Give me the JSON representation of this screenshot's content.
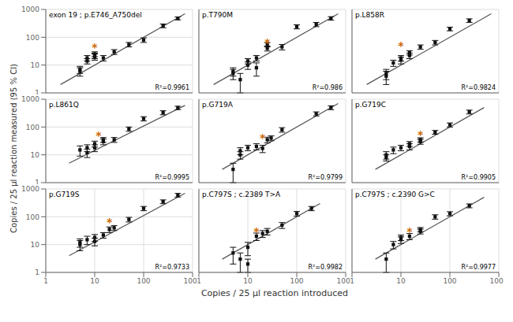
{
  "chart_data": [
    {
      "type": "scatter",
      "title": "exon 19 ; p.E746_A750del",
      "log": true,
      "grid": true,
      "xlim": [
        1,
        1000
      ],
      "ylim": [
        1,
        1000
      ],
      "xticks": [
        1,
        10,
        100,
        1000
      ],
      "yticks": [
        1,
        10,
        100,
        1000
      ],
      "tick_labels": "y",
      "series": [
        {
          "type": "line",
          "color": "#555555",
          "x": [
            2,
            700
          ],
          "values": [
            2,
            700
          ]
        },
        {
          "type": "scatter",
          "marker": "square",
          "color": "#111111",
          "x": [
            5,
            5,
            7,
            7,
            10,
            10,
            10,
            15,
            25,
            50,
            100,
            250,
            500
          ],
          "values": [
            6,
            7,
            14,
            18,
            20,
            22,
            25,
            18,
            30,
            55,
            80,
            260,
            480
          ],
          "error_low": [
            2,
            2,
            3,
            4,
            5,
            5,
            5,
            4,
            6,
            10,
            15,
            40,
            60
          ],
          "error_high": [
            2,
            2,
            3,
            4,
            5,
            5,
            5,
            4,
            6,
            10,
            15,
            40,
            60
          ]
        }
      ],
      "annotations": [
        {
          "text": "*",
          "x": 10,
          "y": 45,
          "color": "#cc6600"
        },
        {
          "text": "R²=0.9961"
        }
      ]
    },
    {
      "type": "scatter",
      "title": "p.T790M",
      "log": true,
      "grid": true,
      "xlim": [
        1,
        1000
      ],
      "ylim": [
        1,
        1000
      ],
      "xticks": [
        1,
        10,
        100,
        1000
      ],
      "yticks": [
        1,
        10,
        100,
        1000
      ],
      "tick_labels": false,
      "series": [
        {
          "type": "line",
          "color": "#555555",
          "x": [
            2,
            700
          ],
          "values": [
            2,
            700
          ]
        },
        {
          "type": "scatter",
          "marker": "square",
          "color": "#111111",
          "x": [
            5,
            5,
            7,
            10,
            10,
            15,
            15,
            25,
            25,
            50,
            100,
            250,
            500
          ],
          "values": [
            5,
            6,
            3,
            10,
            14,
            18,
            8,
            40,
            55,
            45,
            240,
            290,
            480
          ],
          "error_low": [
            2,
            2,
            2,
            3,
            3,
            4,
            4,
            8,
            10,
            10,
            40,
            50,
            70
          ],
          "error_high": [
            2,
            2,
            2,
            3,
            3,
            4,
            4,
            8,
            10,
            10,
            40,
            50,
            70
          ]
        }
      ],
      "annotations": [
        {
          "text": "*",
          "x": 25,
          "y": 65,
          "color": "#cc6600"
        },
        {
          "text": "R²=0.986"
        }
      ]
    },
    {
      "type": "scatter",
      "title": "p.L858R",
      "log": true,
      "grid": true,
      "xlim": [
        1,
        1000
      ],
      "ylim": [
        1,
        1000
      ],
      "xticks": [
        1,
        10,
        100,
        1000
      ],
      "yticks": [
        1,
        10,
        100,
        1000
      ],
      "tick_labels": false,
      "series": [
        {
          "type": "line",
          "color": "#555555",
          "x": [
            2,
            700
          ],
          "values": [
            2,
            700
          ]
        },
        {
          "type": "scatter",
          "marker": "square",
          "color": "#111111",
          "x": [
            5,
            5,
            7,
            10,
            10,
            15,
            15,
            25,
            50,
            100,
            250
          ],
          "values": [
            4,
            5,
            12,
            15,
            18,
            22,
            28,
            45,
            65,
            200,
            400
          ],
          "error_low": [
            2,
            2,
            3,
            4,
            4,
            5,
            5,
            8,
            12,
            30,
            60
          ],
          "error_high": [
            2,
            2,
            3,
            4,
            4,
            5,
            5,
            8,
            12,
            30,
            60
          ]
        }
      ],
      "annotations": [
        {
          "text": "*",
          "x": 10,
          "y": 50,
          "color": "#cc6600"
        },
        {
          "text": "R²=0.9824"
        }
      ]
    },
    {
      "type": "scatter",
      "title": "p.L861Q",
      "log": true,
      "grid": true,
      "xlim": [
        1,
        1000
      ],
      "ylim": [
        1,
        1000
      ],
      "xticks": [
        1,
        10,
        100,
        1000
      ],
      "yticks": [
        1,
        10,
        100,
        1000
      ],
      "tick_labels": "y",
      "series": [
        {
          "type": "line",
          "color": "#555555",
          "x": [
            3,
            700
          ],
          "values": [
            5,
            600
          ]
        },
        {
          "type": "scatter",
          "marker": "square",
          "color": "#111111",
          "x": [
            5,
            7,
            7,
            10,
            10,
            15,
            15,
            25,
            50,
            100,
            250,
            500
          ],
          "values": [
            15,
            12,
            18,
            18,
            25,
            30,
            35,
            35,
            85,
            200,
            330,
            490
          ],
          "error_low": [
            6,
            4,
            5,
            5,
            6,
            7,
            7,
            7,
            15,
            35,
            55,
            70
          ],
          "error_high": [
            6,
            4,
            5,
            5,
            6,
            7,
            7,
            7,
            15,
            35,
            55,
            70
          ]
        }
      ],
      "annotations": [
        {
          "text": "*",
          "x": 12,
          "y": 50,
          "color": "#cc6600"
        },
        {
          "text": "R²=0.9995"
        }
      ]
    },
    {
      "type": "scatter",
      "title": "p.G719A",
      "log": true,
      "grid": true,
      "xlim": [
        1,
        1000
      ],
      "ylim": [
        1,
        1000
      ],
      "xticks": [
        1,
        10,
        100,
        1000
      ],
      "yticks": [
        1,
        10,
        100,
        1000
      ],
      "tick_labels": false,
      "series": [
        {
          "type": "line",
          "color": "#555555",
          "x": [
            3,
            700
          ],
          "values": [
            3,
            700
          ]
        },
        {
          "type": "scatter",
          "marker": "square",
          "color": "#111111",
          "x": [
            5,
            7,
            7,
            10,
            15,
            20,
            25,
            30,
            50,
            250,
            500
          ],
          "values": [
            3,
            10,
            14,
            18,
            20,
            17,
            35,
            40,
            80,
            300,
            500
          ],
          "error_low": [
            2,
            3,
            4,
            4,
            5,
            5,
            8,
            8,
            15,
            50,
            80
          ],
          "error_high": [
            2,
            3,
            4,
            4,
            5,
            5,
            8,
            8,
            15,
            50,
            80
          ]
        }
      ],
      "annotations": [
        {
          "text": "*",
          "x": 20,
          "y": 40,
          "color": "#cc6600"
        },
        {
          "text": "R²=0.9799"
        }
      ]
    },
    {
      "type": "scatter",
      "title": "p.G719C",
      "log": true,
      "grid": true,
      "xlim": [
        1,
        1000
      ],
      "ylim": [
        1,
        1000
      ],
      "xticks": [
        1,
        10,
        100,
        1000
      ],
      "yticks": [
        1,
        10,
        100,
        1000
      ],
      "tick_labels": false,
      "series": [
        {
          "type": "line",
          "color": "#555555",
          "x": [
            3,
            500
          ],
          "values": [
            3,
            500
          ]
        },
        {
          "type": "scatter",
          "marker": "square",
          "color": "#111111",
          "x": [
            5,
            5,
            7,
            10,
            15,
            15,
            25,
            25,
            50,
            100,
            250
          ],
          "values": [
            8,
            10,
            15,
            18,
            20,
            25,
            30,
            35,
            65,
            120,
            350
          ],
          "error_low": [
            2,
            3,
            4,
            4,
            5,
            5,
            6,
            6,
            10,
            20,
            55
          ],
          "error_high": [
            2,
            3,
            4,
            4,
            5,
            5,
            6,
            6,
            10,
            20,
            55
          ]
        }
      ],
      "annotations": [
        {
          "text": "*",
          "x": 25,
          "y": 55,
          "color": "#cc6600"
        },
        {
          "text": "R²=0.9905"
        }
      ]
    },
    {
      "type": "scatter",
      "title": "p.G719S",
      "log": true,
      "grid": true,
      "xlim": [
        1,
        1000
      ],
      "ylim": [
        1,
        1000
      ],
      "xticks": [
        1,
        10,
        100,
        1000
      ],
      "yticks": [
        1,
        10,
        100,
        1000
      ],
      "series": [
        {
          "type": "line",
          "color": "#555555",
          "x": [
            3,
            700
          ],
          "values": [
            4,
            700
          ]
        },
        {
          "type": "scatter",
          "marker": "square",
          "color": "#111111",
          "x": [
            5,
            5,
            7,
            10,
            10,
            15,
            20,
            25,
            50,
            100,
            250,
            500
          ],
          "values": [
            10,
            12,
            15,
            13,
            18,
            22,
            35,
            40,
            80,
            200,
            350,
            600
          ],
          "error_low": [
            4,
            4,
            5,
            4,
            5,
            5,
            8,
            8,
            15,
            35,
            55,
            90
          ],
          "error_high": [
            4,
            4,
            5,
            4,
            5,
            5,
            8,
            8,
            15,
            35,
            55,
            90
          ]
        }
      ],
      "annotations": [
        {
          "text": "*",
          "x": 20,
          "y": 65,
          "color": "#cc6600"
        },
        {
          "text": "R²=0.9733"
        }
      ]
    },
    {
      "type": "scatter",
      "title": "p.C797S ; c.2389 T>A",
      "log": true,
      "grid": true,
      "xlim": [
        1,
        1000
      ],
      "ylim": [
        1,
        1000
      ],
      "xticks": [
        1,
        10,
        100,
        1000
      ],
      "yticks": [
        1,
        10,
        100,
        1000
      ],
      "tick_labels": "x",
      "series": [
        {
          "type": "line",
          "color": "#555555",
          "x": [
            3,
            300
          ],
          "values": [
            3,
            300
          ]
        },
        {
          "type": "scatter",
          "marker": "square",
          "color": "#111111",
          "x": [
            5,
            7,
            10,
            10,
            15,
            20,
            25,
            50,
            100,
            200
          ],
          "values": [
            5,
            3,
            8,
            2,
            20,
            25,
            30,
            50,
            130,
            200
          ],
          "error_low": [
            3,
            2,
            4,
            1,
            6,
            7,
            8,
            12,
            25,
            35
          ],
          "error_high": [
            3,
            2,
            4,
            1,
            6,
            7,
            8,
            12,
            25,
            35
          ]
        }
      ],
      "annotations": [
        {
          "text": "*",
          "x": 15,
          "y": 30,
          "color": "#cc6600"
        },
        {
          "text": "R²=0.9982"
        }
      ]
    },
    {
      "type": "scatter",
      "title": "p.C797S ; c.2390 G>C",
      "log": true,
      "grid": true,
      "xlim": [
        1,
        1000
      ],
      "ylim": [
        1,
        1000
      ],
      "xticks": [
        1,
        10,
        100,
        1000
      ],
      "yticks": [
        1,
        10,
        100,
        1000
      ],
      "tick_labels": "x",
      "series": [
        {
          "type": "line",
          "color": "#555555",
          "x": [
            3,
            500
          ],
          "values": [
            3,
            500
          ]
        },
        {
          "type": "scatter",
          "marker": "square",
          "color": "#111111",
          "x": [
            5,
            7,
            10,
            10,
            15,
            25,
            25,
            50,
            100,
            250
          ],
          "values": [
            3,
            10,
            15,
            18,
            20,
            30,
            35,
            100,
            130,
            250
          ],
          "error_low": [
            2,
            3,
            4,
            4,
            5,
            6,
            6,
            18,
            22,
            40
          ],
          "error_high": [
            2,
            3,
            4,
            4,
            5,
            6,
            6,
            18,
            22,
            40
          ]
        }
      ],
      "annotations": [
        {
          "text": "*",
          "x": 15,
          "y": 30,
          "color": "#cc6600"
        },
        {
          "text": "R²=0.9977"
        }
      ]
    }
  ],
  "xlabel": "Copies / 25 μl reaction introduced",
  "ylabel": "Copies / 25 μl reaction measured (95 % CI)"
}
